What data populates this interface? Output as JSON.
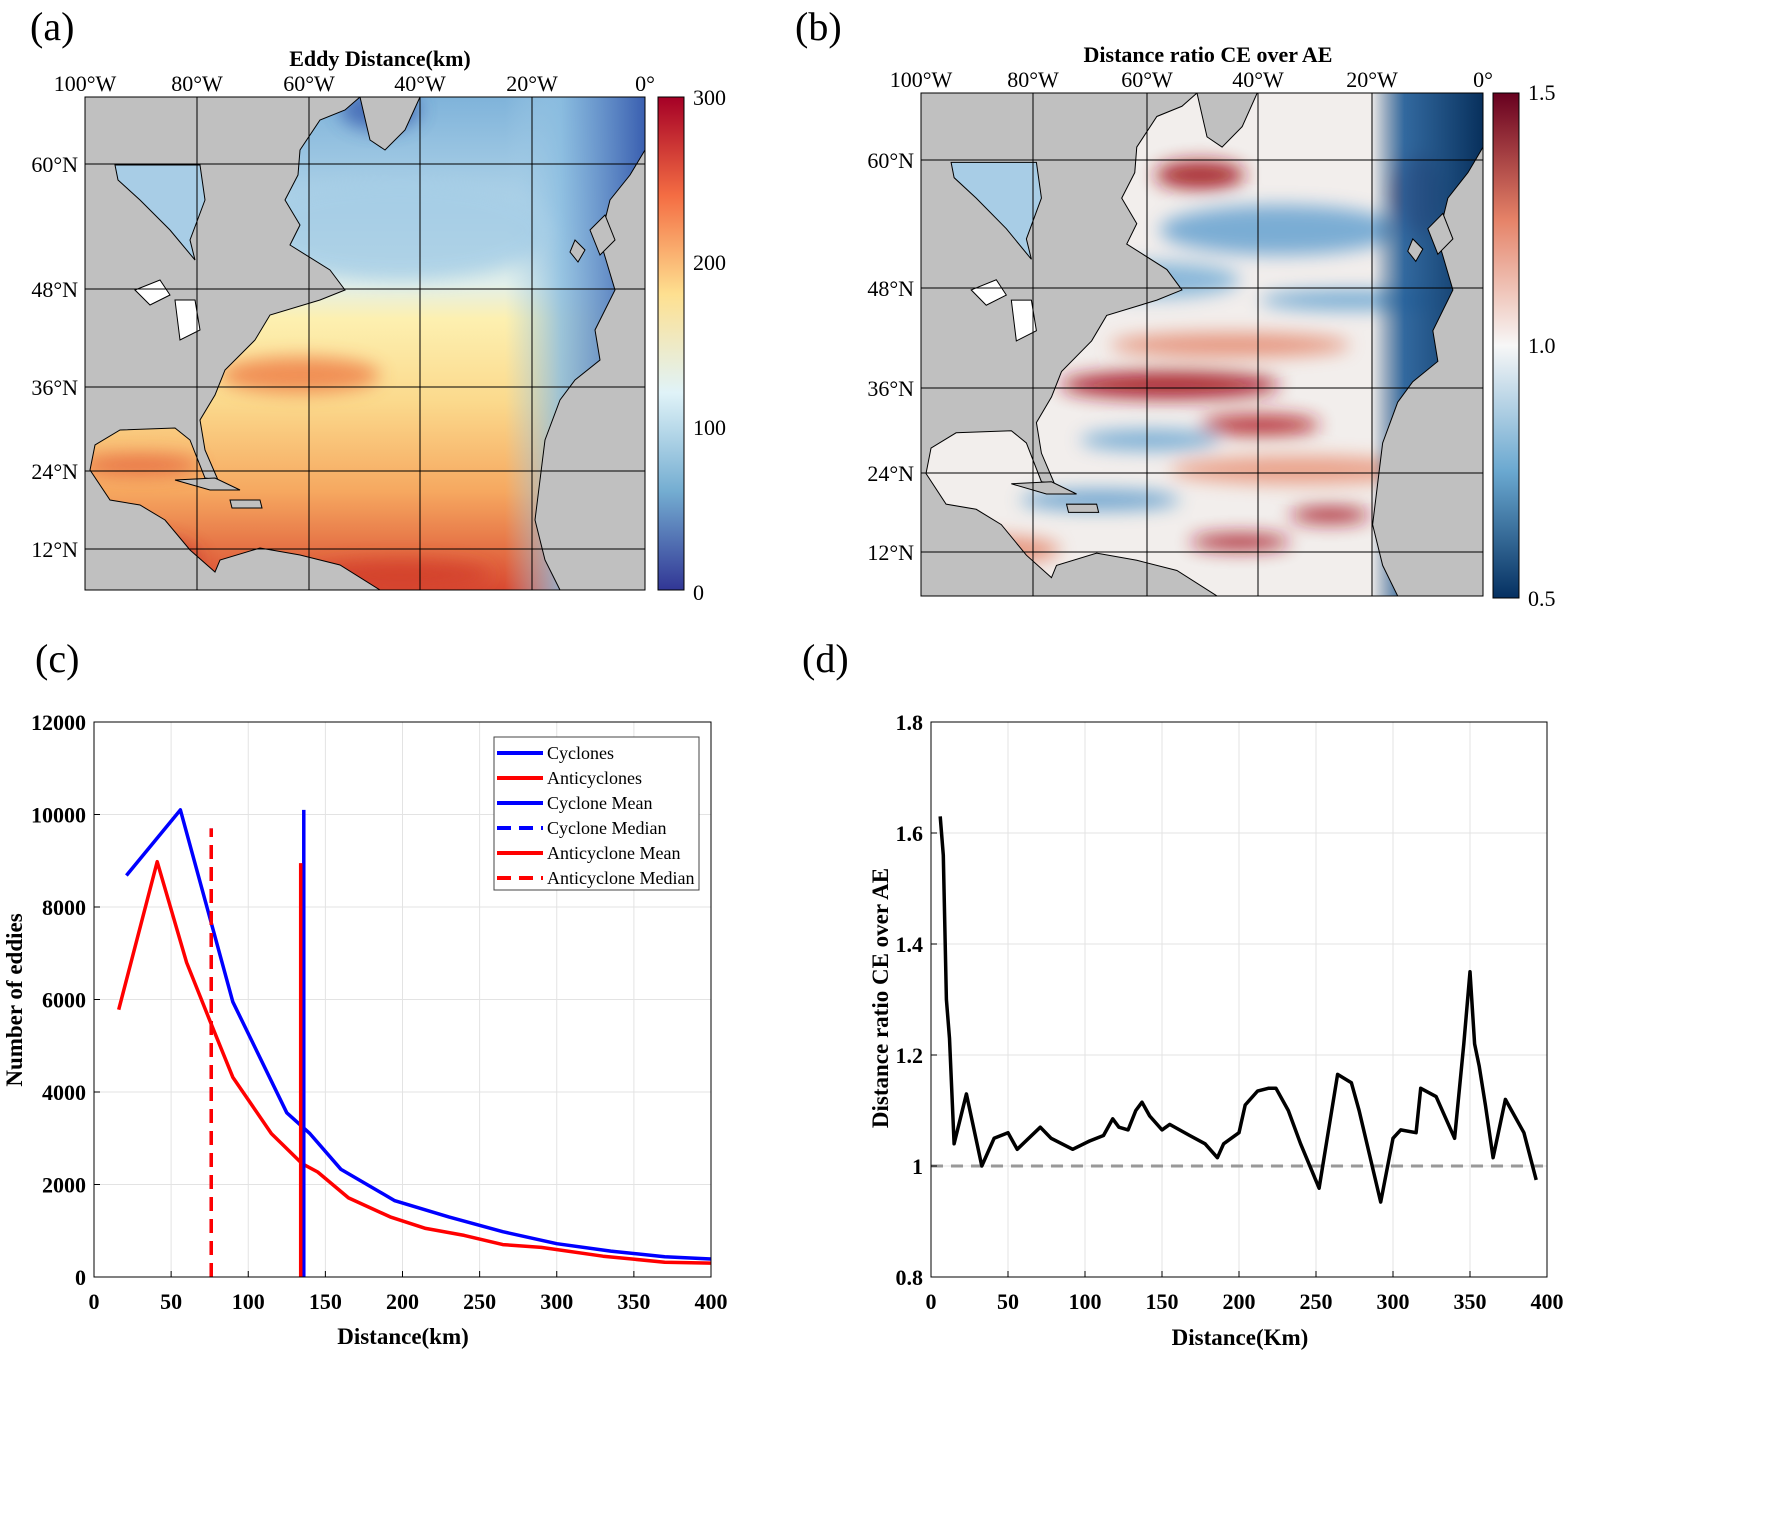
{
  "panels": {
    "a": "(a)",
    "b": "(b)",
    "c": "(c)",
    "d": "(d)"
  },
  "map_a": {
    "title": "Eddy Distance(km)",
    "lon_labels": [
      "100°W",
      "80°W",
      "60°W",
      "40°W",
      "20°W",
      "0°"
    ],
    "lat_labels": [
      "60°N",
      "48°N",
      "36°N",
      "24°N",
      "12°N"
    ],
    "colorbar_labels": [
      "300",
      "200",
      "100",
      "0"
    ],
    "colorbar_range": [
      0,
      300
    ]
  },
  "map_b": {
    "title": "Distance ratio CE over AE",
    "lon_labels": [
      "100°W",
      "80°W",
      "60°W",
      "40°W",
      "20°W",
      "0°"
    ],
    "lat_labels": [
      "60°N",
      "48°N",
      "36°N",
      "24°N",
      "12°N"
    ],
    "colorbar_labels": [
      "1.5",
      "1.0",
      "0.5"
    ],
    "colorbar_range": [
      0.5,
      1.5
    ]
  },
  "colors": {
    "cyclone": "#0000ff",
    "anticyclone": "#ff0000",
    "ratio": "#000000",
    "reference": "#999999",
    "land": "#c0c0c0"
  },
  "chart_data": [
    {
      "type": "line",
      "title": "",
      "xlabel": "Distance(km)",
      "ylabel": "Number of eddies",
      "xlim": [
        0,
        400
      ],
      "ylim": [
        0,
        12000
      ],
      "xticks": [
        0,
        50,
        100,
        150,
        200,
        250,
        300,
        350,
        400
      ],
      "yticks": [
        0,
        2000,
        4000,
        6000,
        8000,
        10000,
        12000
      ],
      "grid": true,
      "legend_position": "top-right",
      "legend": [
        "Cyclones",
        "Anticyclones",
        "Cyclone Mean",
        "Cyclone Median",
        "Anticyclone Mean",
        "Anticyclone Median"
      ],
      "series": [
        {
          "name": "Cyclones",
          "color": "#0000ff",
          "x": [
            21,
            56,
            90,
            125,
            140,
            160,
            195,
            230,
            265,
            300,
            335,
            370,
            400
          ],
          "y": [
            8680,
            10100,
            5950,
            3550,
            3100,
            2330,
            1650,
            1300,
            980,
            720,
            560,
            440,
            390
          ]
        },
        {
          "name": "Anticyclones",
          "color": "#ff0000",
          "x": [
            16,
            41,
            60,
            75,
            90,
            115,
            135,
            145,
            165,
            192,
            215,
            240,
            265,
            290,
            330,
            370,
            400
          ],
          "y": [
            5780,
            8980,
            6800,
            5550,
            4320,
            3100,
            2450,
            2270,
            1710,
            1300,
            1050,
            900,
            700,
            640,
            450,
            320,
            300
          ]
        }
      ],
      "vlines": [
        {
          "name": "Cyclone Mean",
          "x": 136,
          "top": 10100,
          "color": "#0000ff",
          "dash": false
        },
        {
          "name": "Cyclone Median",
          "x": 76,
          "top": 9700,
          "color": "#0000ff",
          "dash": true
        },
        {
          "name": "Anticyclone Mean",
          "x": 134,
          "top": 8950,
          "color": "#ff0000",
          "dash": false
        },
        {
          "name": "Anticyclone Median",
          "x": 76,
          "top": 9700,
          "color": "#ff0000",
          "dash": true
        }
      ]
    },
    {
      "type": "line",
      "title": "",
      "xlabel": "Distance(Km)",
      "ylabel": "Distance ratio CE over AE",
      "xlim": [
        0,
        400
      ],
      "ylim": [
        0.8,
        1.8
      ],
      "xticks": [
        0,
        50,
        100,
        150,
        200,
        250,
        300,
        350,
        400
      ],
      "yticks": [
        0.8,
        1,
        1.2,
        1.4,
        1.6,
        1.8
      ],
      "ytick_labels": [
        "0.8",
        "1",
        "1.2",
        "1.4",
        "1.6",
        "1.8"
      ],
      "grid": true,
      "reference_line": 1,
      "series": [
        {
          "name": "Ratio",
          "color": "#000000",
          "x": [
            6,
            8,
            10,
            12,
            15,
            23,
            33,
            41,
            50,
            56,
            71,
            78,
            92,
            103,
            112,
            118,
            122,
            128,
            133,
            137,
            142,
            150,
            155,
            168,
            178,
            186,
            190,
            200,
            204,
            212,
            219,
            224,
            232,
            240,
            252,
            264,
            273,
            278,
            292,
            300,
            305,
            315,
            318,
            328,
            340,
            346,
            350,
            353,
            356,
            360,
            365,
            373,
            385,
            393
          ],
          "y": [
            1.63,
            1.56,
            1.3,
            1.23,
            1.04,
            1.13,
            1.0,
            1.05,
            1.06,
            1.03,
            1.07,
            1.05,
            1.03,
            1.045,
            1.055,
            1.085,
            1.07,
            1.065,
            1.1,
            1.115,
            1.09,
            1.065,
            1.075,
            1.055,
            1.04,
            1.015,
            1.04,
            1.06,
            1.11,
            1.135,
            1.14,
            1.14,
            1.1,
            1.04,
            0.96,
            1.165,
            1.15,
            1.1,
            0.935,
            1.05,
            1.065,
            1.06,
            1.14,
            1.125,
            1.05,
            1.22,
            1.35,
            1.22,
            1.18,
            1.11,
            1.015,
            1.12,
            1.06,
            0.975
          ]
        }
      ]
    }
  ]
}
